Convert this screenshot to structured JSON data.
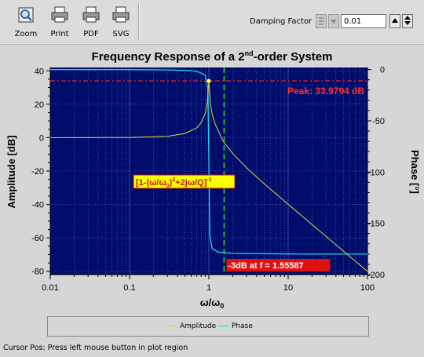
{
  "toolbar": {
    "buttons": [
      {
        "label": "Zoom",
        "icon": "zoom-icon"
      },
      {
        "label": "Print",
        "icon": "printer-icon"
      },
      {
        "label": "PDF",
        "icon": "pdf-icon"
      },
      {
        "label": "SVG",
        "icon": "svg-icon"
      }
    ],
    "damping_label": "Damping Factor",
    "damping_value": "0.01"
  },
  "plot": {
    "title_main": "Frequency Response of a 2",
    "title_sup": "nd",
    "title_end": "-order System",
    "ylabel_left": "Amplitude [dB]",
    "ylabel_right": "Phase [°]",
    "xlabel_main": "ω/ω",
    "xlabel_sub": "0",
    "y_left_ticks": [
      "40",
      "20",
      "0",
      "-20",
      "-40",
      "-60",
      "-80"
    ],
    "y_right_ticks": [
      "0",
      "-50",
      "-100",
      "-150",
      "-200"
    ],
    "x_ticks": [
      "0.01",
      "0.1",
      "1",
      "10",
      "100"
    ],
    "peak_label": "Peak: 33.9794 dB",
    "cutoff_label": "-3dB at f = 1.55587",
    "formula_parts": [
      "[1-(ω/ω",
      "0",
      ")",
      "2",
      "+2jω/Q]",
      "-1"
    ],
    "colors": {
      "canvas": "#000d6b",
      "grid": "#5a6fd4",
      "amplitude": "#d8d84a",
      "phase": "#22d2e6",
      "peak_marker": "#e02020",
      "cutoff_marker": "#2cd62c",
      "label_red": "#ff3030"
    }
  },
  "chart_data": {
    "type": "line",
    "title": "Frequency Response of a 2nd-order System",
    "xlabel": "ω/ω0",
    "ylabel": "Amplitude [dB]",
    "y2label": "Phase [°]",
    "xscale": "log",
    "xlim": [
      0.01,
      100
    ],
    "ylim": [
      -82,
      42
    ],
    "y2lim": [
      -200,
      2
    ],
    "grid": true,
    "legend": "bottom",
    "series": [
      {
        "name": "Amplitude",
        "axis": "left",
        "x": [
          0.01,
          0.1,
          0.3,
          0.5,
          0.7,
          0.8,
          0.9,
          0.95,
          1.0,
          1.05,
          1.1,
          1.2,
          1.5,
          2,
          3,
          5,
          10,
          20,
          50,
          100
        ],
        "y": [
          0,
          0.09,
          0.83,
          2.5,
          5.8,
          8.9,
          14.4,
          20.1,
          34,
          20,
          14.3,
          8.2,
          -1.9,
          -9.5,
          -18.1,
          -27.6,
          -39.9,
          -52,
          -68,
          -80
        ]
      },
      {
        "name": "Phase",
        "axis": "right",
        "x": [
          0.01,
          0.1,
          0.3,
          0.5,
          0.7,
          0.9,
          0.97,
          1.0,
          1.03,
          1.1,
          1.3,
          2,
          10,
          100
        ],
        "y": [
          0,
          -0.1,
          -0.4,
          -0.8,
          -1.6,
          -5.4,
          -18,
          -90,
          -162,
          -174.5,
          -178,
          -179.3,
          -179.9,
          -180
        ]
      }
    ],
    "annotations": [
      {
        "text": "Peak: 33.9794 dB",
        "y": 33.9794
      },
      {
        "text": "-3dB at f = 1.55587",
        "x": 1.55587
      }
    ],
    "legend_entries": [
      "Amplitude",
      "Phase"
    ]
  },
  "status": {
    "text": "Cursor Pos: Press left mouse button in plot region"
  }
}
